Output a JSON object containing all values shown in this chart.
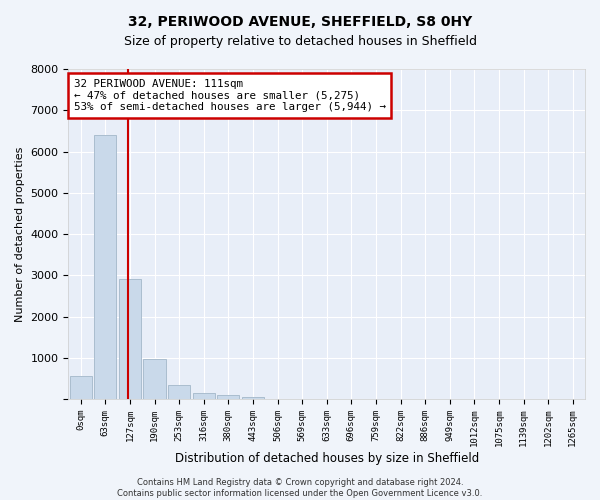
{
  "title1": "32, PERIWOOD AVENUE, SHEFFIELD, S8 0HY",
  "title2": "Size of property relative to detached houses in Sheffield",
  "xlabel": "Distribution of detached houses by size in Sheffield",
  "ylabel": "Number of detached properties",
  "bar_labels": [
    "0sqm",
    "63sqm",
    "127sqm",
    "190sqm",
    "253sqm",
    "316sqm",
    "380sqm",
    "443sqm",
    "506sqm",
    "569sqm",
    "633sqm",
    "696sqm",
    "759sqm",
    "822sqm",
    "886sqm",
    "949sqm",
    "1012sqm",
    "1075sqm",
    "1139sqm",
    "1202sqm",
    "1265sqm"
  ],
  "bar_heights": [
    550,
    6400,
    2900,
    980,
    350,
    150,
    100,
    60,
    5,
    2,
    1,
    1,
    0,
    0,
    0,
    0,
    0,
    0,
    0,
    0,
    0
  ],
  "bar_color": "#c9d9ea",
  "bar_edge_color": "#aabdce",
  "annotation_line1": "32 PERIWOOD AVENUE: 111sqm",
  "annotation_line2": "← 47% of detached houses are smaller (5,275)",
  "annotation_line3": "53% of semi-detached houses are larger (5,944) →",
  "annotation_box_color": "#cc0000",
  "red_line_x": 1.93,
  "ylim": [
    0,
    8000
  ],
  "yticks": [
    0,
    1000,
    2000,
    3000,
    4000,
    5000,
    6000,
    7000,
    8000
  ],
  "footer_line1": "Contains HM Land Registry data © Crown copyright and database right 2024.",
  "footer_line2": "Contains public sector information licensed under the Open Government Licence v3.0.",
  "bg_color": "#f0f4fa",
  "plot_bg_color": "#e8eef8",
  "title1_fontsize": 10,
  "title2_fontsize": 9
}
